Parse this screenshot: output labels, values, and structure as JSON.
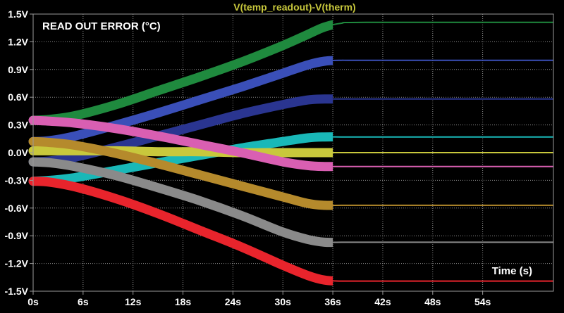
{
  "chart_data": {
    "type": "line",
    "title": "V(temp_readout)-V(therm)",
    "annotation": "READ OUT ERROR (°C)",
    "xlabel": "Time (s)",
    "ylabel": "",
    "xlim": [
      0,
      62.5
    ],
    "ylim": [
      -1.5,
      1.5
    ],
    "x_ticks": [
      0,
      6,
      12,
      18,
      24,
      30,
      36,
      42,
      48,
      54
    ],
    "x_tick_labels": [
      "0s",
      "6s",
      "12s",
      "18s",
      "24s",
      "30s",
      "36s",
      "42s",
      "48s",
      "54s"
    ],
    "y_ticks": [
      1.5,
      1.2,
      0.9,
      0.6,
      0.3,
      0.0,
      -0.3,
      -0.6,
      -0.9,
      -1.2,
      -1.5
    ],
    "y_tick_labels": [
      "1.5V",
      "1.2V",
      "0.9V",
      "0.6V",
      "0.3V",
      "0.0V",
      "-0.3V",
      "-0.6V",
      "-0.9V",
      "-1.2V",
      "-1.5V"
    ],
    "grid": true,
    "series": [
      {
        "color": "#1f8a3e",
        "x": [
          0,
          2,
          5,
          10,
          15,
          20,
          25,
          30,
          33,
          35,
          37,
          40,
          62.5
        ],
        "y": [
          0.35,
          0.36,
          0.4,
          0.52,
          0.67,
          0.82,
          0.98,
          1.16,
          1.28,
          1.36,
          1.4,
          1.41,
          1.41
        ]
      },
      {
        "color": "#3a4fb8",
        "x": [
          0,
          2,
          5,
          10,
          15,
          20,
          25,
          30,
          33,
          35,
          37,
          40,
          62.5
        ],
        "y": [
          0.12,
          0.13,
          0.18,
          0.3,
          0.43,
          0.57,
          0.71,
          0.86,
          0.95,
          0.99,
          1.0,
          1.0,
          1.0
        ]
      },
      {
        "color": "#2a3590",
        "x": [
          0,
          2,
          5,
          10,
          15,
          20,
          25,
          30,
          33,
          35,
          37,
          40,
          62.5
        ],
        "y": [
          -0.1,
          -0.09,
          -0.05,
          0.06,
          0.18,
          0.3,
          0.42,
          0.52,
          0.57,
          0.58,
          0.58,
          0.58,
          0.58
        ]
      },
      {
        "color": "#19b8b8",
        "x": [
          0,
          2,
          5,
          10,
          15,
          20,
          25,
          30,
          33,
          35,
          37,
          40,
          62.5
        ],
        "y": [
          -0.31,
          -0.3,
          -0.27,
          -0.19,
          -0.11,
          -0.03,
          0.05,
          0.12,
          0.16,
          0.17,
          0.17,
          0.17,
          0.17
        ]
      },
      {
        "color": "#c8c83c",
        "x": [
          0,
          2,
          5,
          10,
          15,
          20,
          25,
          30,
          33,
          35,
          37,
          40,
          62.5
        ],
        "y": [
          0.02,
          0.02,
          0.02,
          0.02,
          0.01,
          0.01,
          0.0,
          0.0,
          0.0,
          0.0,
          0.0,
          0.0,
          0.0
        ]
      },
      {
        "color": "#d95fb2",
        "x": [
          0,
          2,
          5,
          10,
          15,
          20,
          25,
          30,
          33,
          35,
          37,
          40,
          62.5
        ],
        "y": [
          0.35,
          0.34,
          0.32,
          0.26,
          0.18,
          0.09,
          0.0,
          -0.1,
          -0.14,
          -0.15,
          -0.15,
          -0.15,
          -0.15
        ]
      },
      {
        "color": "#b58a2c",
        "x": [
          0,
          2,
          5,
          10,
          15,
          20,
          25,
          30,
          33,
          35,
          37,
          40,
          62.5
        ],
        "y": [
          0.12,
          0.11,
          0.08,
          -0.01,
          -0.12,
          -0.24,
          -0.36,
          -0.48,
          -0.55,
          -0.57,
          -0.57,
          -0.57,
          -0.57
        ]
      },
      {
        "color": "#8a8a8a",
        "x": [
          0,
          2,
          5,
          10,
          15,
          20,
          25,
          30,
          33,
          35,
          37,
          40,
          62.5
        ],
        "y": [
          -0.1,
          -0.11,
          -0.15,
          -0.25,
          -0.38,
          -0.52,
          -0.68,
          -0.86,
          -0.94,
          -0.97,
          -0.97,
          -0.97,
          -0.97
        ]
      },
      {
        "color": "#e8242c",
        "x": [
          0,
          2,
          5,
          10,
          15,
          20,
          25,
          30,
          33,
          35,
          37,
          40,
          62.5
        ],
        "y": [
          -0.31,
          -0.32,
          -0.37,
          -0.5,
          -0.66,
          -0.84,
          -1.02,
          -1.22,
          -1.33,
          -1.38,
          -1.39,
          -1.39,
          -1.39
        ]
      }
    ]
  }
}
